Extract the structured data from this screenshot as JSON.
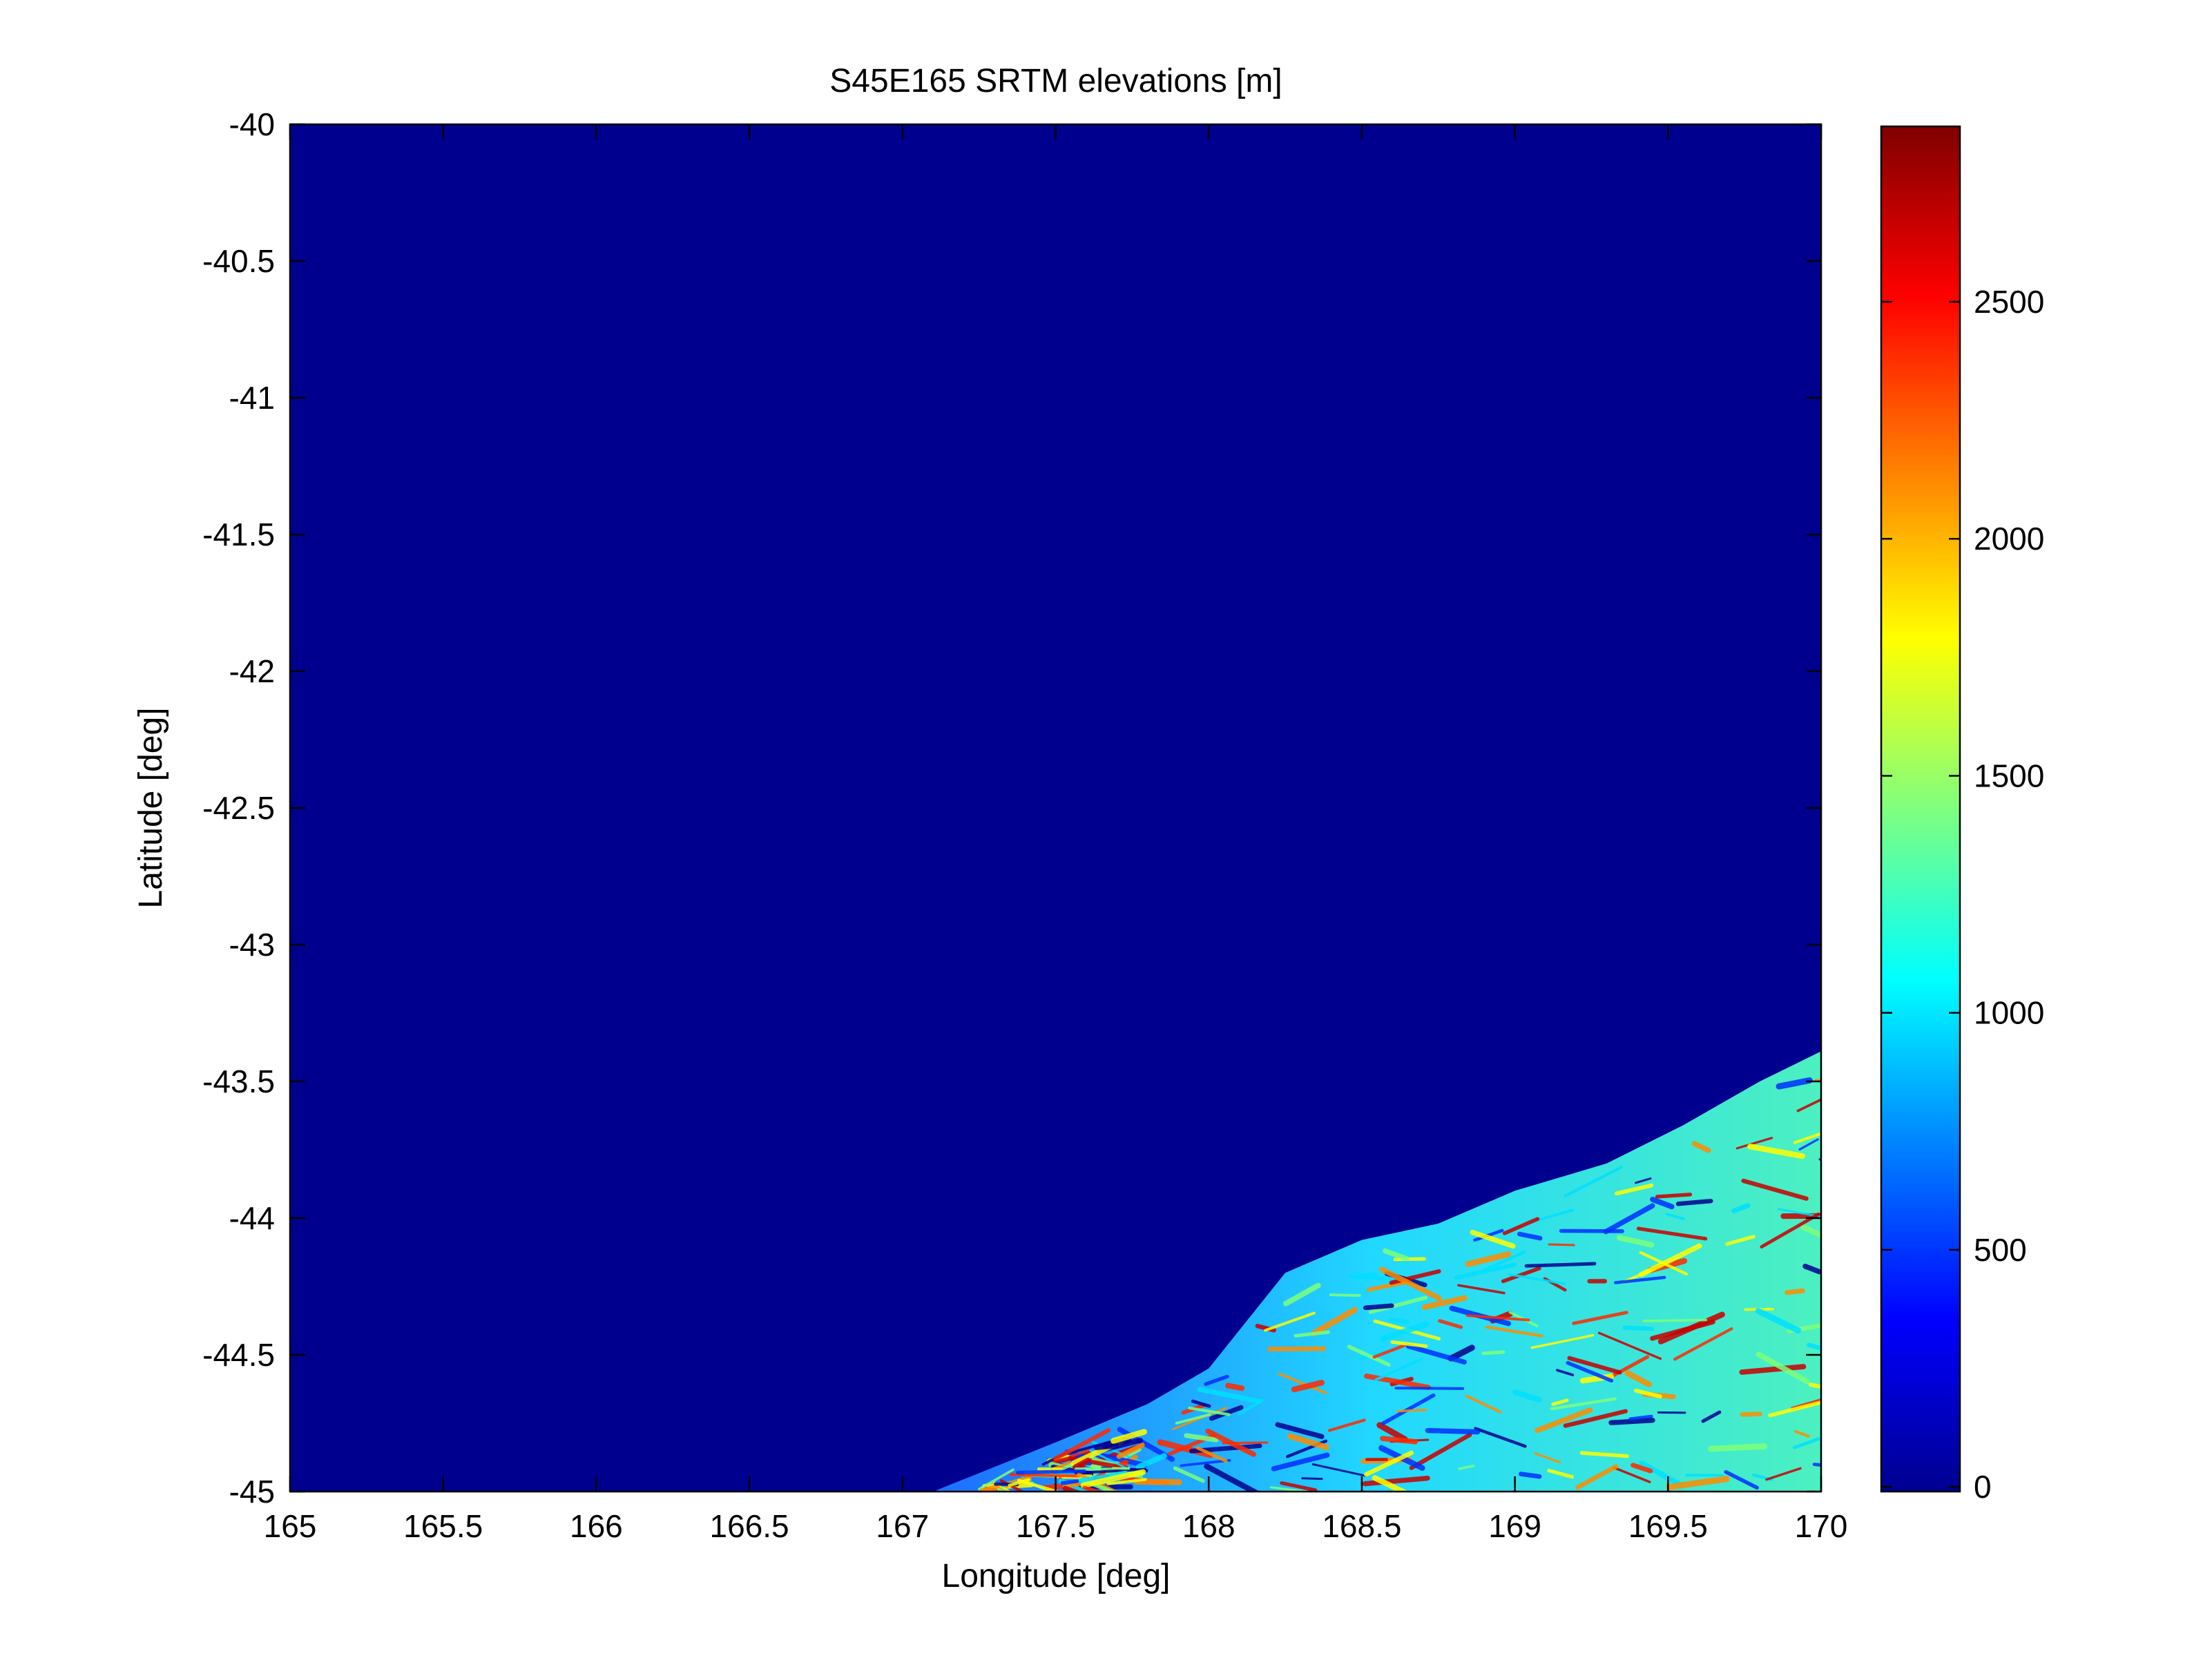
{
  "chart_data": {
    "type": "heatmap",
    "title": "S45E165 SRTM elevations [m]",
    "xlabel": "Longitude [deg]",
    "ylabel": "Latitude [deg]",
    "xlim": [
      165,
      170
    ],
    "ylim": [
      -45,
      -40
    ],
    "xticks": [
      "165",
      "165.5",
      "166",
      "166.5",
      "167",
      "167.5",
      "168",
      "168.5",
      "169",
      "169.5",
      "170"
    ],
    "yticks": [
      "-40",
      "-40.5",
      "-41",
      "-41.5",
      "-42",
      "-42.5",
      "-43",
      "-43.5",
      "-44",
      "-44.5",
      "-45"
    ],
    "colormap": "jet",
    "background_value_color": "#00008f",
    "colorbar": {
      "range": [
        -10,
        2870
      ],
      "ticks": [
        "0",
        "500",
        "1000",
        "1500",
        "2000",
        "2500"
      ],
      "tick_values": [
        0,
        500,
        1000,
        1500,
        2000,
        2500
      ]
    },
    "coastline": [
      [
        167.1,
        -45.0
      ],
      [
        167.5,
        -44.82
      ],
      [
        167.8,
        -44.68
      ],
      [
        168.0,
        -44.55
      ],
      [
        168.25,
        -44.2
      ],
      [
        168.5,
        -44.08
      ],
      [
        168.75,
        -44.02
      ],
      [
        169.0,
        -43.9
      ],
      [
        169.3,
        -43.8
      ],
      [
        169.55,
        -43.66
      ],
      [
        169.8,
        -43.5
      ],
      [
        170.0,
        -43.39
      ]
    ],
    "land_elevation_range_m": [
      0,
      2800
    ]
  }
}
